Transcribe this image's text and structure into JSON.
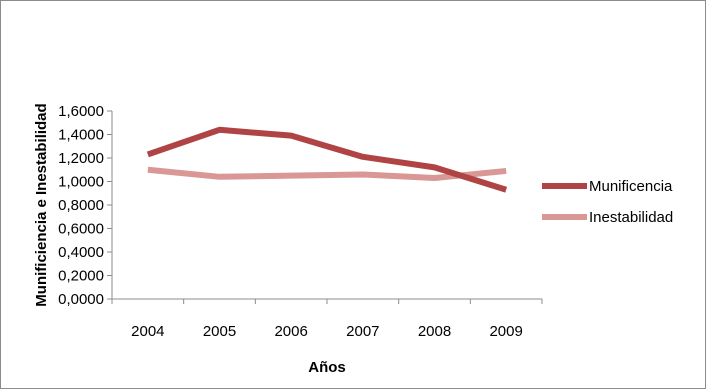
{
  "chart_data": {
    "type": "line",
    "title": "",
    "xlabel": "Años",
    "ylabel": "Munificiencia e Inestabilidad",
    "categories": [
      "2004",
      "2005",
      "2006",
      "2007",
      "2008",
      "2009"
    ],
    "ylim": [
      0,
      1.6
    ],
    "yticks": [
      0,
      0.2,
      0.4,
      0.6,
      0.8,
      1.0,
      1.2,
      1.4,
      1.6
    ],
    "ytick_labels": [
      "0,0000",
      "0,2000",
      "0,4000",
      "0,6000",
      "0,8000",
      "1,0000",
      "1,2000",
      "1,4000",
      "1,6000"
    ],
    "grid": false,
    "legend_position": "right",
    "series": [
      {
        "name": "Munificencia",
        "color": "#b04444",
        "values": [
          1.23,
          1.44,
          1.39,
          1.21,
          1.12,
          0.93
        ]
      },
      {
        "name": "Inestabilidad",
        "color": "#d99795",
        "values": [
          1.1,
          1.04,
          1.05,
          1.06,
          1.03,
          1.09
        ]
      }
    ]
  }
}
